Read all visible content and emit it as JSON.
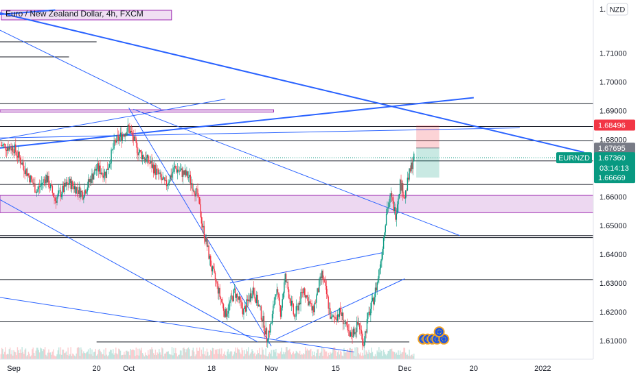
{
  "chart_data": {
    "type": "candlestick",
    "title": "Euro / New Zealand Dollar, 4h, FXCM",
    "currency": "NZD",
    "y_ticks": [
      1.71,
      1.7,
      1.69,
      1.68,
      1.67,
      1.66,
      1.65,
      1.64,
      1.63,
      1.62,
      1.61
    ],
    "y_tick_labels": [
      "1.71000",
      "1.70000",
      "1.69000",
      "1.68000",
      "1.67000",
      "1.66000",
      "1.65000",
      "1.64000",
      "1.63000",
      "1.62000",
      "1.61000"
    ],
    "ylim": [
      1.6035,
      1.7285
    ],
    "x_tick_labels": [
      "Sep",
      "20",
      "Oct",
      "18",
      "Nov",
      "15",
      "Dec",
      "20",
      "2022"
    ],
    "x_tick_positions": [
      0,
      18,
      25,
      43,
      56,
      70,
      85,
      100,
      115
    ],
    "xlim": [
      -3,
      126
    ],
    "price_tags": [
      {
        "label": "1.68496",
        "value": 1.68496,
        "color": "#f23645"
      },
      {
        "label": "1.67695",
        "value": 1.67695,
        "color": "#787b86"
      },
      {
        "label": "1.67360",
        "value": 1.6736,
        "color": "#089981",
        "symbol": "EURNZD",
        "countdown": "03:14:13"
      },
      {
        "label": "1.66669",
        "value": 1.66669,
        "color": "#089981"
      }
    ],
    "price_series": {
      "t": [
        -3,
        0,
        3,
        5,
        7,
        9,
        12,
        15,
        18,
        20,
        22,
        25,
        27,
        30,
        33,
        35,
        38,
        40,
        41,
        42,
        43,
        44,
        46,
        48,
        50,
        52,
        54,
        55,
        56,
        57,
        58,
        59,
        61,
        63,
        65,
        67,
        68,
        69,
        71,
        73,
        75,
        76,
        77,
        78,
        79,
        80,
        81,
        82,
        83,
        84,
        85,
        86,
        87
      ],
      "close": [
        1.678,
        1.677,
        1.668,
        1.662,
        1.667,
        1.659,
        1.665,
        1.661,
        1.67,
        1.668,
        1.679,
        1.684,
        1.676,
        1.671,
        1.664,
        1.67,
        1.667,
        1.66,
        1.65,
        1.643,
        1.635,
        1.63,
        1.619,
        1.627,
        1.62,
        1.628,
        1.618,
        1.611,
        1.616,
        1.628,
        1.62,
        1.632,
        1.618,
        1.628,
        1.62,
        1.633,
        1.626,
        1.617,
        1.62,
        1.611,
        1.616,
        1.609,
        1.618,
        1.623,
        1.63,
        1.64,
        1.655,
        1.66,
        1.654,
        1.665,
        1.66,
        1.668,
        1.674
      ]
    },
    "horizontal_levels": [
      1.6925,
      1.6845,
      1.6795,
      1.6725,
      1.6643,
      1.6465,
      1.6458,
      1.6312,
      1.6165
    ],
    "zones": [
      {
        "from": 1.6545,
        "to": 1.6605,
        "color": "#9c27b0"
      },
      {
        "from": 1.6895,
        "to": 1.6903,
        "color": "#9c27b0"
      }
    ],
    "position": {
      "entry": 1.677,
      "stop": 1.6849,
      "target": 1.6667
    }
  }
}
